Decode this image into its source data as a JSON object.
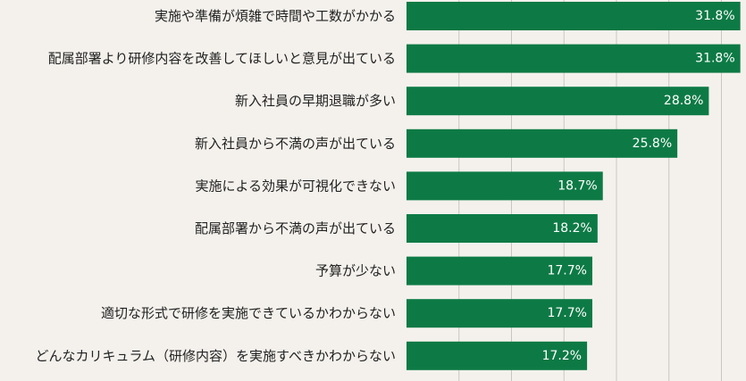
{
  "chart_data": {
    "type": "bar",
    "orientation": "horizontal",
    "categories": [
      "実施や準備が煩雑で時間や工数がかかる",
      "配属部署より研修内容を改善してほしいと意見が出ている",
      "新入社員の早期退職が多い",
      "新入社員から不満の声が出ている",
      "実施による効果が可視化できない",
      "配属部署から不満の声が出ている",
      "予算が少ない",
      "適切な形式で研修を実施できているかわからない",
      "どんなカリキュラム（研修内容）を実施すべきかわからない"
    ],
    "values": [
      31.8,
      31.8,
      28.8,
      25.8,
      18.7,
      18.2,
      17.7,
      17.7,
      17.2
    ],
    "value_labels": [
      "31.8%",
      "31.8%",
      "28.8%",
      "25.8%",
      "18.7%",
      "18.2%",
      "17.7%",
      "17.7%",
      "17.2%"
    ],
    "xlim": [
      0,
      32
    ],
    "grid": true,
    "colors": {
      "bar": "#0d7a45",
      "background": "#f4f1ec",
      "grid": "#c9c6c1"
    }
  }
}
